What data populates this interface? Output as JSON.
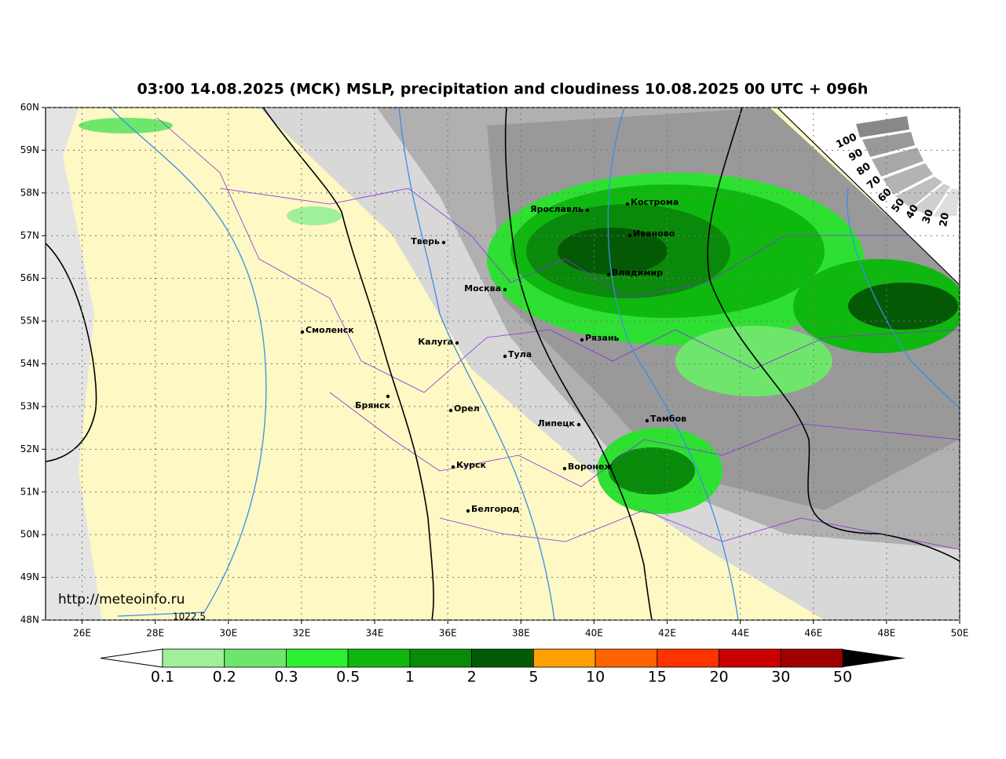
{
  "title": "03:00 14.08.2025 (МСК) MSLP, precipitation and cloudiness 10.08.2025 00 UTC + 096h",
  "lon_ticks": [
    {
      "value": 26,
      "label": "26E"
    },
    {
      "value": 28,
      "label": "28E"
    },
    {
      "value": 30,
      "label": "30E"
    },
    {
      "value": 32,
      "label": "32E"
    },
    {
      "value": 34,
      "label": "34E"
    },
    {
      "value": 36,
      "label": "36E"
    },
    {
      "value": 38,
      "label": "38E"
    },
    {
      "value": 40,
      "label": "40E"
    },
    {
      "value": 42,
      "label": "42E"
    },
    {
      "value": 44,
      "label": "44E"
    },
    {
      "value": 46,
      "label": "46E"
    },
    {
      "value": 48,
      "label": "48E"
    },
    {
      "value": 50,
      "label": "50E"
    }
  ],
  "lat_ticks": [
    {
      "value": 60,
      "label": "60N"
    },
    {
      "value": 59,
      "label": "59N"
    },
    {
      "value": 58,
      "label": "58N"
    },
    {
      "value": 57,
      "label": "57N"
    },
    {
      "value": 56,
      "label": "56N"
    },
    {
      "value": 55,
      "label": "55N"
    },
    {
      "value": 54,
      "label": "54N"
    },
    {
      "value": 53,
      "label": "53N"
    },
    {
      "value": 52,
      "label": "52N"
    },
    {
      "value": 51,
      "label": "51N"
    },
    {
      "value": 50,
      "label": "50N"
    },
    {
      "value": 49,
      "label": "49N"
    },
    {
      "value": 48,
      "label": "48N"
    }
  ],
  "cities": [
    "Кострома",
    "Ярославль",
    "Иваново",
    "Тверь",
    "Владимир",
    "Москва",
    "Смоленск",
    "Калуга",
    "Рязань",
    "Тула",
    "Брянск",
    "Орел",
    "Липецк",
    "Тамбов",
    "Курск",
    "Воронеж",
    "Белгород"
  ],
  "isobar_label": "1022.5",
  "source": "http://meteoinfo.ru",
  "cloud_scale": [
    100,
    90,
    80,
    70,
    60,
    50,
    40,
    30,
    20
  ],
  "colorbar": {
    "levels": [
      0.1,
      0.2,
      0.3,
      0.5,
      1,
      2,
      5,
      10,
      15,
      20,
      30,
      50
    ],
    "colors": [
      "#a0f09a",
      "#6ee66c",
      "#2ef032",
      "#0fb80f",
      "#0a8a0a",
      "#045a04",
      "#ffa000",
      "#ff6400",
      "#ff3200",
      "#c80000",
      "#a00000"
    ]
  }
}
